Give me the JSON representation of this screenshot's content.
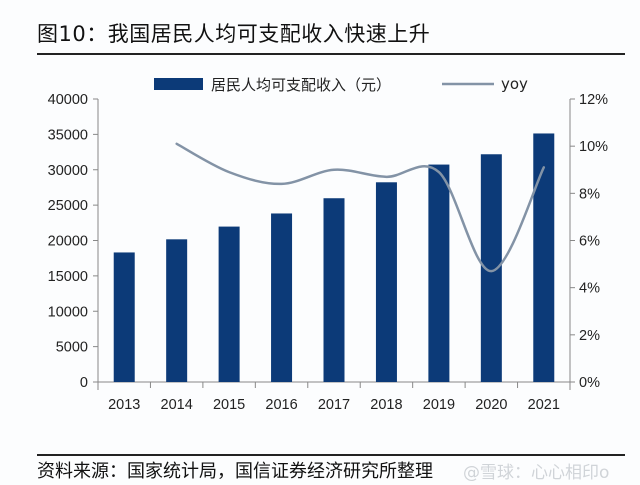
{
  "title": "图10：我国居民人均可支配收入快速上升",
  "source": "资料来源：国家统计局，国信证券经济研究所整理",
  "watermark": "@雪球：心心相印o",
  "colors": {
    "bar": "#0c3a78",
    "line": "#8393a6",
    "axis": "#888888"
  },
  "chart_data": {
    "type": "bar",
    "title": "图10：我国居民人均可支配收入快速上升",
    "categories": [
      "2013",
      "2014",
      "2015",
      "2016",
      "2017",
      "2018",
      "2019",
      "2020",
      "2021"
    ],
    "series": [
      {
        "name": "居民人均可支配收入（元）",
        "type": "bar",
        "axis": "left",
        "values": [
          18311,
          20167,
          21966,
          23821,
          25974,
          28228,
          30733,
          32189,
          35128
        ]
      },
      {
        "name": "yoy",
        "type": "line",
        "axis": "right",
        "unit": "%",
        "values": [
          null,
          10.1,
          8.9,
          8.4,
          9.0,
          8.7,
          8.9,
          4.7,
          9.1
        ]
      }
    ],
    "left_axis": {
      "ylim": [
        0,
        40000
      ],
      "ticks": [
        "0",
        "5000",
        "10000",
        "15000",
        "20000",
        "25000",
        "30000",
        "35000",
        "40000"
      ]
    },
    "right_axis": {
      "ylim": [
        0,
        12
      ],
      "ticks": [
        "0%",
        "2%",
        "4%",
        "6%",
        "8%",
        "10%",
        "12%"
      ]
    },
    "xlabel": "",
    "ylabel": "",
    "grid": false,
    "legend": "top-center"
  }
}
